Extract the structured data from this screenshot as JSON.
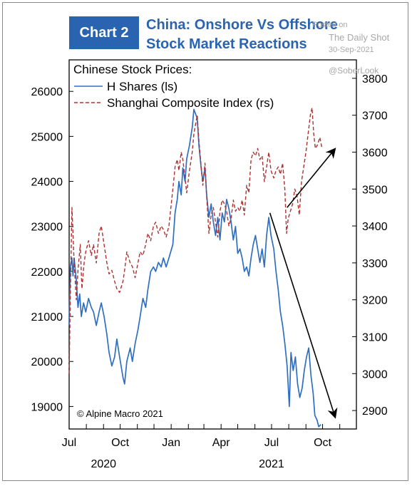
{
  "header": {
    "chart_label": "Chart 2",
    "title_line1": "China: Onshore Vs Offshore",
    "title_line2": "Stock Market Reactions"
  },
  "watermark": {
    "posted_on": "Posted on",
    "site": "The Daily Shot",
    "date": "30-Sep-2021",
    "handle": "@SoberLook"
  },
  "colors": {
    "accent": "#2a63b0",
    "h_shares": "#2f6fc2",
    "shanghai": "#b03030"
  },
  "chart_data": {
    "type": "line",
    "legend_title": "Chinese Stock Prices:",
    "legend_placement": "top-left",
    "copyright": "© Alpine Macro 2021",
    "x_tick_labels": [
      "Jul",
      "Oct",
      "Jan",
      "Apr",
      "Jul",
      "Oct"
    ],
    "x_year_labels": [
      "2020",
      "2021"
    ],
    "x_range": [
      "2020-07-01",
      "2021-12-01"
    ],
    "y_left": {
      "ticks": [
        19000,
        20000,
        21000,
        22000,
        23000,
        24000,
        25000,
        26000
      ],
      "range": [
        18500,
        26700
      ]
    },
    "y_right": {
      "ticks": [
        2900,
        3000,
        3100,
        3200,
        3300,
        3400,
        3500,
        3600,
        3700,
        3800
      ],
      "range": [
        2850,
        3850
      ]
    },
    "series": [
      {
        "name": "H Shares (ls)",
        "axis": "left",
        "style": "solid",
        "points": [
          [
            "2020-07-01",
            20800
          ],
          [
            "2020-07-03",
            22100
          ],
          [
            "2020-07-06",
            22300
          ],
          [
            "2020-07-08",
            21900
          ],
          [
            "2020-07-10",
            22300
          ],
          [
            "2020-07-14",
            21800
          ],
          [
            "2020-07-17",
            21200
          ],
          [
            "2020-07-20",
            21500
          ],
          [
            "2020-07-23",
            21000
          ],
          [
            "2020-07-27",
            21300
          ],
          [
            "2020-07-31",
            21100
          ],
          [
            "2020-08-05",
            21400
          ],
          [
            "2020-08-10",
            21200
          ],
          [
            "2020-08-14",
            21100
          ],
          [
            "2020-08-19",
            20800
          ],
          [
            "2020-08-24",
            21100
          ],
          [
            "2020-08-28",
            21300
          ],
          [
            "2020-09-02",
            21000
          ],
          [
            "2020-09-07",
            20600
          ],
          [
            "2020-09-11",
            20200
          ],
          [
            "2020-09-16",
            19900
          ],
          [
            "2020-09-21",
            20100
          ],
          [
            "2020-09-25",
            20500
          ],
          [
            "2020-09-30",
            20100
          ],
          [
            "2020-10-06",
            19650
          ],
          [
            "2020-10-09",
            19500
          ],
          [
            "2020-10-13",
            20000
          ],
          [
            "2020-10-19",
            20300
          ],
          [
            "2020-10-23",
            20000
          ],
          [
            "2020-10-28",
            20400
          ],
          [
            "2020-11-02",
            20700
          ],
          [
            "2020-11-06",
            21000
          ],
          [
            "2020-11-11",
            21400
          ],
          [
            "2020-11-16",
            21200
          ],
          [
            "2020-11-20",
            21600
          ],
          [
            "2020-11-25",
            22000
          ],
          [
            "2020-11-30",
            22100
          ],
          [
            "2020-12-04",
            22000
          ],
          [
            "2020-12-09",
            22200
          ],
          [
            "2020-12-14",
            22100
          ],
          [
            "2020-12-18",
            22300
          ],
          [
            "2020-12-23",
            22100
          ],
          [
            "2020-12-28",
            22300
          ],
          [
            "2021-01-04",
            22600
          ],
          [
            "2021-01-08",
            23300
          ],
          [
            "2021-01-12",
            23600
          ],
          [
            "2021-01-15",
            24000
          ],
          [
            "2021-01-19",
            23700
          ],
          [
            "2021-01-22",
            24300
          ],
          [
            "2021-01-26",
            24000
          ],
          [
            "2021-01-29",
            24500
          ],
          [
            "2021-02-03",
            24800
          ],
          [
            "2021-02-08",
            25200
          ],
          [
            "2021-02-11",
            25600
          ],
          [
            "2021-02-17",
            25400
          ],
          [
            "2021-02-20",
            24800
          ],
          [
            "2021-02-24",
            24300
          ],
          [
            "2021-02-27",
            24000
          ],
          [
            "2021-03-03",
            24300
          ],
          [
            "2021-03-06",
            23700
          ],
          [
            "2021-03-10",
            23200
          ],
          [
            "2021-03-14",
            23500
          ],
          [
            "2021-03-18",
            23100
          ],
          [
            "2021-03-22",
            22800
          ],
          [
            "2021-03-26",
            23200
          ],
          [
            "2021-03-30",
            22700
          ],
          [
            "2021-04-03",
            23300
          ],
          [
            "2021-04-07",
            23100
          ],
          [
            "2021-04-11",
            23600
          ],
          [
            "2021-04-15",
            23400
          ],
          [
            "2021-04-19",
            23100
          ],
          [
            "2021-04-23",
            22700
          ],
          [
            "2021-04-27",
            23000
          ],
          [
            "2021-05-01",
            22400
          ],
          [
            "2021-05-05",
            22500
          ],
          [
            "2021-05-09",
            22300
          ],
          [
            "2021-05-13",
            22000
          ],
          [
            "2021-05-17",
            22100
          ],
          [
            "2021-05-21",
            21900
          ],
          [
            "2021-05-25",
            22300
          ],
          [
            "2021-05-29",
            22600
          ],
          [
            "2021-06-02",
            22800
          ],
          [
            "2021-06-06",
            22500
          ],
          [
            "2021-06-10",
            22200
          ],
          [
            "2021-06-14",
            22500
          ],
          [
            "2021-06-18",
            22100
          ],
          [
            "2021-06-22",
            22800
          ],
          [
            "2021-06-26",
            23200
          ],
          [
            "2021-06-30",
            22800
          ],
          [
            "2021-07-05",
            22500
          ],
          [
            "2021-07-09",
            22000
          ],
          [
            "2021-07-13",
            21600
          ],
          [
            "2021-07-17",
            21100
          ],
          [
            "2021-07-21",
            20800
          ],
          [
            "2021-07-25",
            20400
          ],
          [
            "2021-07-29",
            19900
          ],
          [
            "2021-08-02",
            19000
          ],
          [
            "2021-08-05",
            20200
          ],
          [
            "2021-08-09",
            19800
          ],
          [
            "2021-08-13",
            20100
          ],
          [
            "2021-08-17",
            19500
          ],
          [
            "2021-08-21",
            19200
          ],
          [
            "2021-08-25",
            19400
          ],
          [
            "2021-08-29",
            19800
          ],
          [
            "2021-09-02",
            20100
          ],
          [
            "2021-09-06",
            20300
          ],
          [
            "2021-09-10",
            19700
          ],
          [
            "2021-09-14",
            19300
          ],
          [
            "2021-09-17",
            18800
          ],
          [
            "2021-09-21",
            18700
          ],
          [
            "2021-09-24",
            18550
          ],
          [
            "2021-09-28",
            18600
          ]
        ]
      },
      {
        "name": "Shanghai Composite Index (rs)",
        "axis": "right",
        "style": "dashed",
        "points": [
          [
            "2020-07-01",
            3000
          ],
          [
            "2020-07-03",
            3200
          ],
          [
            "2020-07-06",
            3450
          ],
          [
            "2020-07-08",
            3380
          ],
          [
            "2020-07-10",
            3300
          ],
          [
            "2020-07-14",
            3200
          ],
          [
            "2020-07-17",
            3280
          ],
          [
            "2020-07-21",
            3350
          ],
          [
            "2020-07-24",
            3230
          ],
          [
            "2020-07-28",
            3300
          ],
          [
            "2020-07-31",
            3330
          ],
          [
            "2020-08-05",
            3360
          ],
          [
            "2020-08-10",
            3320
          ],
          [
            "2020-08-14",
            3350
          ],
          [
            "2020-08-19",
            3300
          ],
          [
            "2020-08-24",
            3380
          ],
          [
            "2020-08-28",
            3400
          ],
          [
            "2020-09-02",
            3350
          ],
          [
            "2020-09-07",
            3300
          ],
          [
            "2020-09-11",
            3270
          ],
          [
            "2020-09-16",
            3280
          ],
          [
            "2020-09-21",
            3250
          ],
          [
            "2020-09-25",
            3230
          ],
          [
            "2020-09-30",
            3220
          ],
          [
            "2020-10-06",
            3250
          ],
          [
            "2020-10-09",
            3280
          ],
          [
            "2020-10-13",
            3330
          ],
          [
            "2020-10-19",
            3300
          ],
          [
            "2020-10-23",
            3290
          ],
          [
            "2020-10-28",
            3260
          ],
          [
            "2020-11-02",
            3300
          ],
          [
            "2020-11-06",
            3330
          ],
          [
            "2020-11-11",
            3320
          ],
          [
            "2020-11-16",
            3350
          ],
          [
            "2020-11-20",
            3380
          ],
          [
            "2020-11-25",
            3360
          ],
          [
            "2020-11-30",
            3400
          ],
          [
            "2020-12-04",
            3410
          ],
          [
            "2020-12-09",
            3380
          ],
          [
            "2020-12-14",
            3400
          ],
          [
            "2020-12-18",
            3390
          ],
          [
            "2020-12-23",
            3370
          ],
          [
            "2020-12-28",
            3400
          ],
          [
            "2021-01-04",
            3500
          ],
          [
            "2021-01-08",
            3560
          ],
          [
            "2021-01-12",
            3580
          ],
          [
            "2021-01-15",
            3550
          ],
          [
            "2021-01-19",
            3600
          ],
          [
            "2021-01-22",
            3580
          ],
          [
            "2021-01-26",
            3530
          ],
          [
            "2021-01-29",
            3490
          ],
          [
            "2021-02-03",
            3550
          ],
          [
            "2021-02-08",
            3600
          ],
          [
            "2021-02-11",
            3650
          ],
          [
            "2021-02-17",
            3700
          ],
          [
            "2021-02-20",
            3630
          ],
          [
            "2021-02-24",
            3560
          ],
          [
            "2021-02-27",
            3510
          ],
          [
            "2021-03-03",
            3570
          ],
          [
            "2021-03-06",
            3480
          ],
          [
            "2021-03-10",
            3380
          ],
          [
            "2021-03-14",
            3430
          ],
          [
            "2021-03-18",
            3450
          ],
          [
            "2021-03-22",
            3410
          ],
          [
            "2021-03-26",
            3370
          ],
          [
            "2021-03-30",
            3440
          ],
          [
            "2021-04-03",
            3470
          ],
          [
            "2021-04-07",
            3460
          ],
          [
            "2021-04-11",
            3440
          ],
          [
            "2021-04-15",
            3400
          ],
          [
            "2021-04-19",
            3420
          ],
          [
            "2021-04-23",
            3470
          ],
          [
            "2021-04-27",
            3440
          ],
          [
            "2021-05-01",
            3450
          ],
          [
            "2021-05-05",
            3440
          ],
          [
            "2021-05-09",
            3470
          ],
          [
            "2021-05-13",
            3430
          ],
          [
            "2021-05-17",
            3510
          ],
          [
            "2021-05-21",
            3490
          ],
          [
            "2021-05-25",
            3580
          ],
          [
            "2021-05-29",
            3600
          ],
          [
            "2021-06-02",
            3590
          ],
          [
            "2021-06-06",
            3610
          ],
          [
            "2021-06-10",
            3580
          ],
          [
            "2021-06-14",
            3590
          ],
          [
            "2021-06-18",
            3520
          ],
          [
            "2021-06-22",
            3560
          ],
          [
            "2021-06-26",
            3600
          ],
          [
            "2021-06-30",
            3550
          ],
          [
            "2021-07-05",
            3530
          ],
          [
            "2021-07-09",
            3550
          ],
          [
            "2021-07-13",
            3560
          ],
          [
            "2021-07-17",
            3540
          ],
          [
            "2021-07-21",
            3570
          ],
          [
            "2021-07-25",
            3500
          ],
          [
            "2021-07-28",
            3380
          ],
          [
            "2021-07-31",
            3420
          ],
          [
            "2021-08-04",
            3440
          ],
          [
            "2021-08-08",
            3460
          ],
          [
            "2021-08-12",
            3500
          ],
          [
            "2021-08-16",
            3480
          ],
          [
            "2021-08-20",
            3430
          ],
          [
            "2021-08-24",
            3520
          ],
          [
            "2021-08-28",
            3560
          ],
          [
            "2021-09-01",
            3600
          ],
          [
            "2021-09-05",
            3650
          ],
          [
            "2021-09-09",
            3700
          ],
          [
            "2021-09-12",
            3720
          ],
          [
            "2021-09-15",
            3650
          ],
          [
            "2021-09-18",
            3610
          ],
          [
            "2021-09-22",
            3620
          ],
          [
            "2021-09-26",
            3640
          ],
          [
            "2021-09-30",
            3610
          ]
        ]
      }
    ],
    "annotations": [
      {
        "type": "arrow",
        "axis": "left",
        "from": [
          "2021-06-28",
          23300
        ],
        "to": [
          "2021-10-24",
          18750
        ]
      },
      {
        "type": "arrow",
        "axis": "right",
        "from": [
          "2021-07-29",
          3450
        ],
        "to": [
          "2021-10-24",
          3610
        ]
      }
    ]
  }
}
